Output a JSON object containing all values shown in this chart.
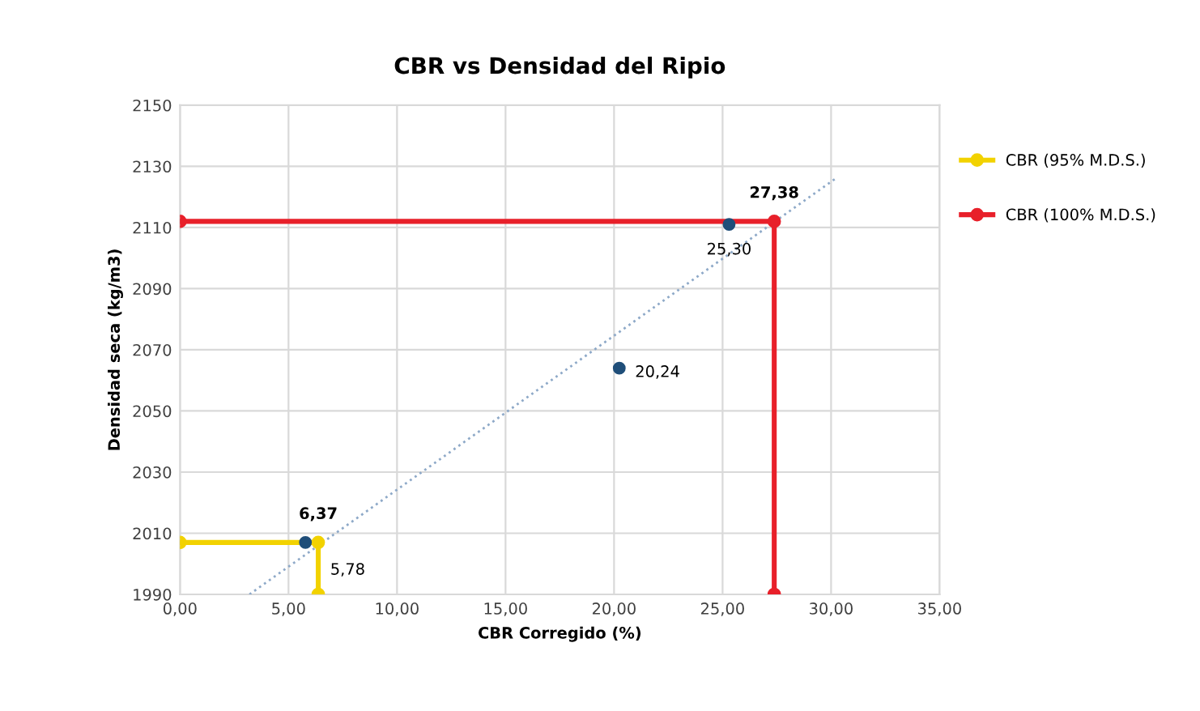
{
  "chart_data": {
    "type": "scatter",
    "title": "CBR vs Densidad del Ripio",
    "xlabel": "CBR Corregido (%)",
    "ylabel": "Densidad seca (kg/m3)",
    "xlim": [
      0,
      35
    ],
    "ylim": [
      1990,
      2150
    ],
    "xticks": [
      {
        "value": 0,
        "label": "0,00"
      },
      {
        "value": 5,
        "label": "5,00"
      },
      {
        "value": 10,
        "label": "10,00"
      },
      {
        "value": 15,
        "label": "15,00"
      },
      {
        "value": 20,
        "label": "20,00"
      },
      {
        "value": 25,
        "label": "25,00"
      },
      {
        "value": 30,
        "label": "30,00"
      },
      {
        "value": 35,
        "label": "35,00"
      }
    ],
    "yticks": [
      1990,
      2010,
      2030,
      2050,
      2070,
      2090,
      2110,
      2130,
      2150
    ],
    "grid": true,
    "legend": "right",
    "annotations": [
      {
        "text": "5,78",
        "x": 5.78,
        "y": 2007
      },
      {
        "text": "20,24",
        "x": 20.24,
        "y": 2064
      },
      {
        "text": "25,30",
        "x": 25.3,
        "y": 2111
      },
      {
        "text": "6,37",
        "x": 6.37,
        "y": 2007
      },
      {
        "text": "27,38",
        "x": 27.38,
        "y": 2112
      }
    ],
    "series": [
      {
        "color": "#1f4e79",
        "x": [
          5.78,
          20.24,
          25.3
        ],
        "values": [
          2007,
          2064,
          2111
        ],
        "marker": "circle"
      },
      {
        "type": "line",
        "color": "#8ea9c8",
        "x": [
          3.2,
          30.2
        ],
        "values": [
          1990,
          2126
        ],
        "line_style": "dotted",
        "marker": "none"
      },
      {
        "type": "line",
        "name": "CBR (95% M.D.S.)",
        "color": "#f2d200",
        "x": [
          0,
          6.37,
          6.37
        ],
        "values": [
          2007,
          2007,
          1990
        ],
        "marker": "circle",
        "line_style": "solid"
      },
      {
        "type": "line",
        "name": "CBR (100% M.D.S.)",
        "color": "#e8202a",
        "x": [
          0,
          27.38,
          27.38
        ],
        "values": [
          2112,
          2112,
          1990
        ],
        "marker": "circle",
        "line_style": "solid"
      }
    ]
  }
}
